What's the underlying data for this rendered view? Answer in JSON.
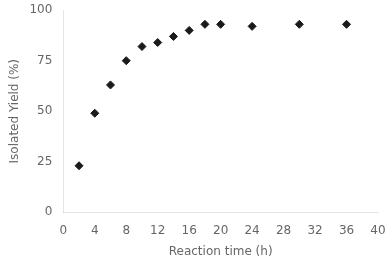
{
  "chart_data": {
    "type": "scatter",
    "x": [
      2,
      4,
      6,
      8,
      10,
      12,
      14,
      16,
      18,
      20,
      24,
      30,
      36
    ],
    "values": [
      23,
      49,
      63,
      75,
      82,
      84,
      87,
      90,
      93,
      93,
      92,
      93,
      93
    ],
    "xlabel": "Reaction time (h)",
    "ylabel": "Isolated Yield (%)",
    "xlim": [
      0,
      40
    ],
    "ylim": [
      0,
      100
    ],
    "xticks": [
      0,
      4,
      8,
      12,
      16,
      20,
      24,
      28,
      32,
      36,
      40
    ],
    "yticks": [
      0,
      25,
      50,
      75,
      100
    ],
    "color": "#1a1a1a",
    "marker": "diamond",
    "grid": false
  }
}
